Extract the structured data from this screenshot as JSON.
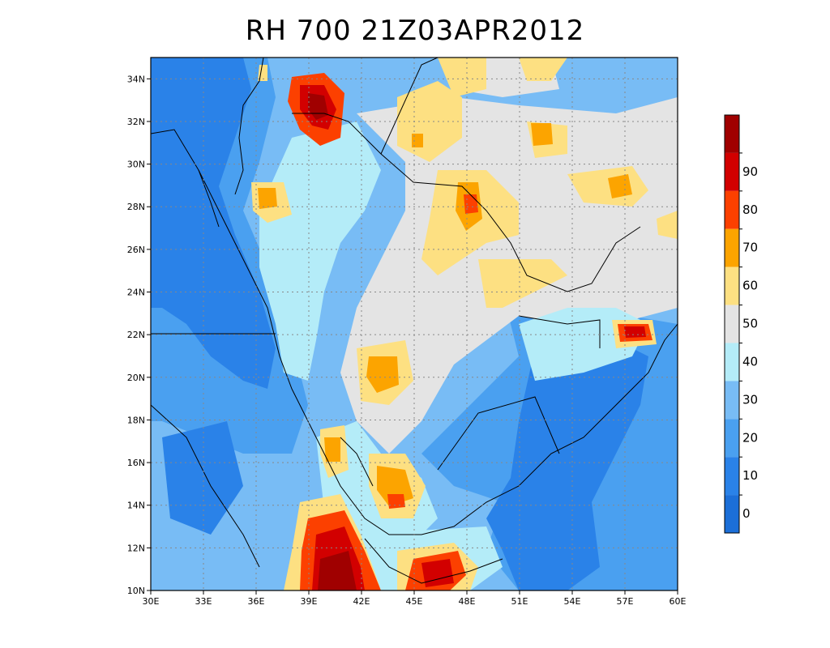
{
  "title": "RH 700 21Z03APR2012",
  "map": {
    "lon_labels": [
      "30E",
      "33E",
      "36E",
      "39E",
      "42E",
      "45E",
      "48E",
      "51E",
      "54E",
      "57E",
      "60E"
    ],
    "lat_labels": [
      "10N",
      "12N",
      "14N",
      "16N",
      "18N",
      "20N",
      "22N",
      "24N",
      "26N",
      "28N",
      "30N",
      "32N",
      "34N"
    ],
    "lon_range": [
      30,
      60
    ],
    "lat_range": [
      10,
      35
    ],
    "grid": "dotted"
  },
  "colorbar": {
    "labels": [
      "0",
      "10",
      "20",
      "30",
      "40",
      "50",
      "60",
      "70",
      "80",
      "90"
    ],
    "colors": [
      "#1c6fd8",
      "#2a82e8",
      "#4aa0f0",
      "#78bcf5",
      "#b4ecf8",
      "#e4e4e4",
      "#fde082",
      "#fca400",
      "#fc4000",
      "#d20000",
      "#a00000"
    ]
  }
}
